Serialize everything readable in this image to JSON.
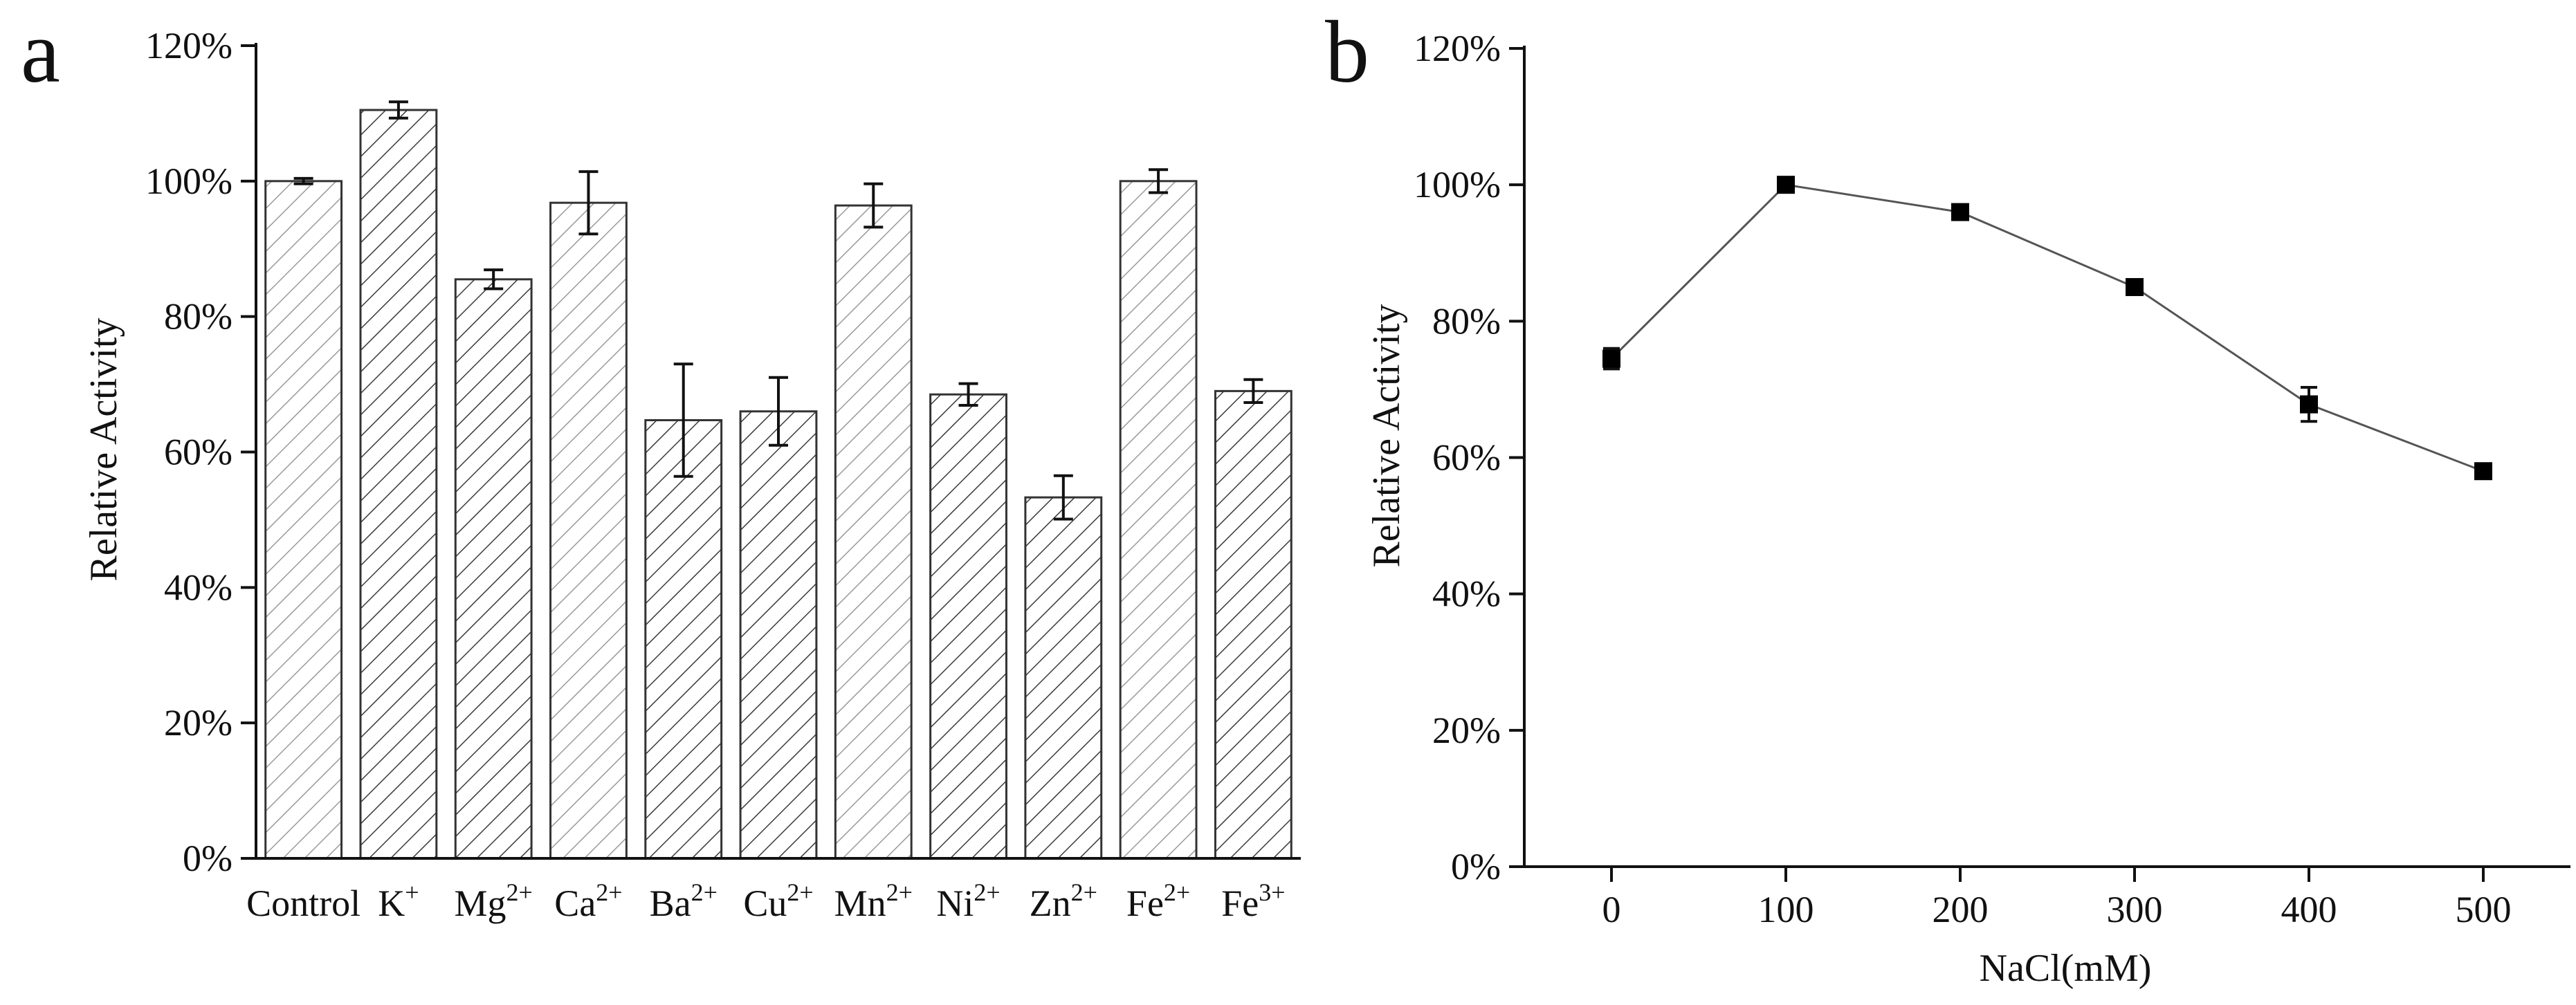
{
  "chart_data": [
    {
      "panel": "a",
      "type": "bar",
      "ylabel": "Relative Activity",
      "xlabel": "",
      "ylim": [
        0,
        120
      ],
      "yticks": [
        "0%",
        "20%",
        "40%",
        "60%",
        "80%",
        "100%",
        "120%"
      ],
      "categories": [
        {
          "base": "Control",
          "sup": ""
        },
        {
          "base": "K",
          "sup": "+"
        },
        {
          "base": "Mg",
          "sup": "2+"
        },
        {
          "base": "Ca",
          "sup": "2+"
        },
        {
          "base": "Ba",
          "sup": "2+"
        },
        {
          "base": "Cu",
          "sup": "2+"
        },
        {
          "base": "Mn",
          "sup": "2+"
        },
        {
          "base": "Ni",
          "sup": "2+"
        },
        {
          "base": "Zn",
          "sup": "2+"
        },
        {
          "base": "Fe",
          "sup": "2+"
        },
        {
          "base": "Fe",
          "sup": "3+"
        }
      ],
      "values": [
        100,
        110.5,
        85.5,
        96.8,
        64.7,
        66,
        96.4,
        68.5,
        53.3,
        100,
        69
      ],
      "errors": [
        0.4,
        1.2,
        1.4,
        4.6,
        8.3,
        5,
        3.2,
        1.6,
        3.2,
        1.7,
        1.7
      ],
      "hatch": [
        "light",
        "dark",
        "dark",
        "light",
        "dark",
        "dark",
        "light",
        "dark",
        "dark",
        "light",
        "dark"
      ]
    },
    {
      "panel": "b",
      "type": "line",
      "xlabel": "NaCl(mM)",
      "ylabel": "Relative Activity",
      "xlim": [
        -50,
        550
      ],
      "ylim": [
        0,
        120
      ],
      "xticks": [
        0,
        100,
        200,
        300,
        400,
        500
      ],
      "yticks": [
        "0%",
        "20%",
        "40%",
        "60%",
        "80%",
        "100%",
        "120%"
      ],
      "x": [
        0,
        100,
        200,
        300,
        400,
        500
      ],
      "y": [
        74.5,
        100,
        96,
        85,
        67.8,
        58
      ],
      "errors": [
        1.5,
        0.3,
        0.4,
        0.3,
        2.5,
        0.4
      ],
      "marker": "square"
    }
  ]
}
